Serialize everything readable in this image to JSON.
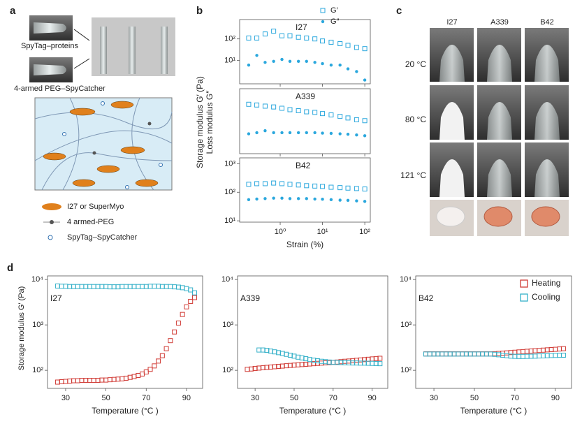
{
  "figure": {
    "panel_labels": [
      "a",
      "b",
      "c",
      "d"
    ],
    "a": {
      "photo_labels": [
        "SpyTag–proteins",
        "4-armed PEG–SpyCatcher"
      ],
      "legend": [
        "I27 or SuperMyo",
        "4 armed-PEG",
        "SpyTag–SpyCatcher"
      ]
    },
    "c": {
      "columns": [
        "I27",
        "A339",
        "B42"
      ],
      "rows": [
        {
          "label": "20 °C",
          "color": "#222222"
        },
        {
          "label": "80 °C",
          "color": "#d02828"
        },
        {
          "label": "121 °C",
          "color": "#d02828"
        }
      ]
    }
  },
  "chart_data": [
    {
      "type": "scatter",
      "log_x": true,
      "log_y": true,
      "x": [
        0.18,
        0.28,
        0.44,
        0.7,
        1.1,
        1.7,
        2.7,
        4.2,
        6.6,
        10,
        16,
        26,
        40,
        64,
        100
      ],
      "xlim": [
        0.11,
        135
      ],
      "xticks": [
        {
          "value": 1,
          "label": "10⁰"
        },
        {
          "value": 10,
          "label": "10¹"
        },
        {
          "value": 100,
          "label": "10²"
        }
      ],
      "xlabel": "Strain (%)",
      "ylabel": [
        "Storage modulus G′ (Pa)",
        "Loss modulus G″"
      ],
      "legend": [
        {
          "name": "G′",
          "color": "#2aa7dd",
          "marker": "square"
        },
        {
          "name": "G″",
          "color": "#2aa7dd",
          "marker": "circle"
        }
      ],
      "panels": [
        {
          "label": "I27",
          "ylim": [
            0.8,
            800
          ],
          "yticks": [
            {
              "value": 10,
              "label": "10¹"
            },
            {
              "value": 100,
              "label": "10²"
            }
          ],
          "series": [
            {
              "values": [
                110,
                110,
                170,
                230,
                140,
                140,
                120,
                110,
                100,
                80,
                70,
                60,
                50,
                40,
                35
              ]
            },
            {
              "values": [
                6,
                17,
                8,
                9,
                11,
                9,
                9,
                9,
                8,
                7,
                6,
                6,
                4,
                3,
                1.2
              ]
            }
          ]
        },
        {
          "label": "A339",
          "ylim": [
            20,
            1200
          ],
          "series": [
            {
              "values": [
                450,
                430,
                400,
                380,
                350,
                320,
                300,
                280,
                270,
                250,
                230,
                210,
                190,
                170,
                160
              ]
            },
            {
              "values": [
                70,
                75,
                85,
                75,
                75,
                75,
                75,
                75,
                75,
                73,
                72,
                70,
                68,
                65,
                62
              ]
            }
          ]
        },
        {
          "label": "B42",
          "ylim": [
            9,
            1600
          ],
          "yticks": [
            {
              "value": 10,
              "label": "10¹"
            },
            {
              "value": 100,
              "label": "10²"
            },
            {
              "value": 1000,
              "label": "10³"
            }
          ],
          "series": [
            {
              "values": [
                190,
                200,
                200,
                210,
                200,
                190,
                180,
                170,
                165,
                160,
                150,
                145,
                140,
                135,
                130
              ]
            },
            {
              "values": [
                55,
                58,
                60,
                62,
                62,
                60,
                60,
                60,
                58,
                57,
                55,
                53,
                52,
                50,
                48
              ]
            }
          ]
        }
      ]
    },
    {
      "type": "scatter",
      "log_y": true,
      "x": [
        26,
        28,
        30,
        32,
        34,
        36,
        38,
        40,
        42,
        44,
        46,
        48,
        50,
        52,
        54,
        56,
        58,
        60,
        62,
        64,
        66,
        68,
        70,
        72,
        74,
        76,
        78,
        80,
        82,
        84,
        86,
        88,
        90,
        92,
        94
      ],
      "xlim": [
        21,
        98
      ],
      "xticks": [
        30,
        50,
        70,
        90
      ],
      "ylim": [
        40,
        12000
      ],
      "yticks": [
        {
          "value": 100,
          "label": "10²"
        },
        {
          "value": 1000,
          "label": "10³"
        },
        {
          "value": 10000,
          "label": "10⁴"
        }
      ],
      "xlabel": "Temperature (°C )",
      "ylabel": "Storage modulus G′ (Pa)",
      "legend": [
        {
          "name": "Heating",
          "color": "#d03a34",
          "marker": "square"
        },
        {
          "name": "Cooling",
          "color": "#34b0c8",
          "marker": "square"
        }
      ],
      "panels": [
        {
          "label": "I27",
          "series": [
            {
              "values": [
                55,
                56,
                57,
                58,
                59,
                59,
                60,
                60,
                60,
                60,
                60,
                61,
                61,
                62,
                63,
                64,
                65,
                67,
                70,
                73,
                77,
                83,
                92,
                105,
                125,
                160,
                210,
                300,
                450,
                700,
                1100,
                1700,
                2500,
                3300,
                4000
              ]
            },
            {
              "values": [
                7200,
                7100,
                7100,
                7000,
                7000,
                7000,
                7000,
                7000,
                7000,
                7000,
                7000,
                7000,
                7000,
                6900,
                6900,
                6900,
                7000,
                7000,
                7000,
                7000,
                7000,
                7000,
                7000,
                7100,
                7100,
                7100,
                7000,
                7000,
                7000,
                6900,
                6800,
                6600,
                6300,
                5900,
                5100
              ]
            }
          ]
        },
        {
          "label": "A339",
          "series": [
            {
              "values": [
                105,
                107,
                110,
                112,
                114,
                116,
                118,
                120,
                122,
                124,
                126,
                128,
                130,
                132,
                134,
                136,
                138,
                140,
                142,
                144,
                146,
                148,
                150,
                152,
                155,
                158,
                160,
                163,
                166,
                169,
                172,
                175,
                178,
                181,
                184
              ]
            },
            {
              "values": [
                null,
                null,
                null,
                280,
                280,
                275,
                265,
                255,
                245,
                235,
                225,
                215,
                205,
                195,
                188,
                180,
                173,
                167,
                162,
                158,
                155,
                152,
                150,
                149,
                148,
                147,
                146,
                145,
                145,
                144,
                144,
                143,
                142,
                141,
                140
              ]
            }
          ]
        },
        {
          "label": "B42",
          "series": [
            {
              "values": [
                230,
                230,
                230,
                230,
                230,
                230,
                230,
                230,
                230,
                230,
                230,
                230,
                230,
                230,
                230,
                230,
                230,
                232,
                235,
                238,
                242,
                246,
                250,
                254,
                258,
                262,
                266,
                270,
                274,
                278,
                282,
                286,
                290,
                295,
                300
              ]
            },
            {
              "values": [
                228,
                228,
                228,
                228,
                228,
                228,
                228,
                228,
                228,
                228,
                228,
                228,
                228,
                228,
                228,
                228,
                228,
                225,
                220,
                215,
                210,
                205,
                203,
                202,
                202,
                203,
                204,
                205,
                207,
                208,
                210,
                212,
                213,
                214,
                215
              ]
            }
          ]
        }
      ]
    }
  ]
}
